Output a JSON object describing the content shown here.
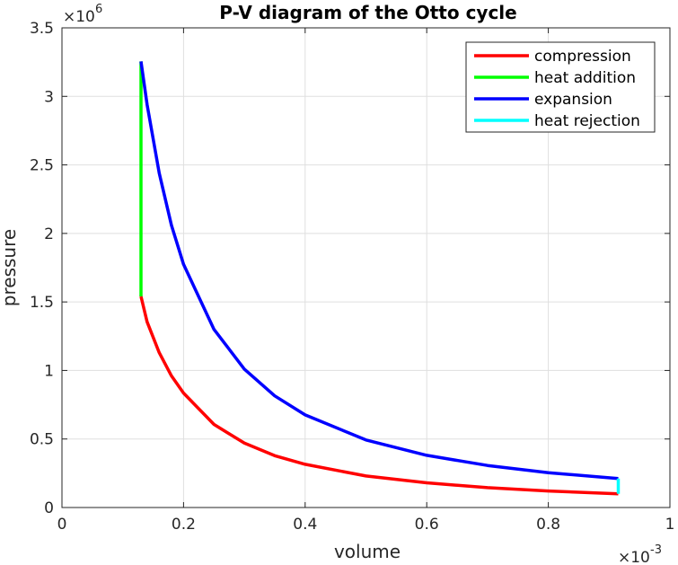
{
  "chart_data": {
    "type": "line",
    "title": "P-V diagram of the Otto cycle",
    "xlabel": "volume",
    "ylabel": "pressure",
    "xlim": [
      0,
      0.001
    ],
    "ylim": [
      0,
      3500000
    ],
    "x_exponent_label": "×10",
    "x_exponent_power": "-3",
    "y_exponent_label": "×10",
    "y_exponent_power": "6",
    "xticks": [
      0,
      0.0002,
      0.0004,
      0.0006,
      0.0008,
      0.001
    ],
    "xtick_labels": [
      "0",
      "0.2",
      "0.4",
      "0.6",
      "0.8",
      "1"
    ],
    "yticks": [
      0,
      500000,
      1000000,
      1500000,
      2000000,
      2500000,
      3000000,
      3500000
    ],
    "ytick_labels": [
      "0",
      "0.5",
      "1",
      "1.5",
      "2",
      "2.5",
      "3",
      "3.5"
    ],
    "grid": true,
    "legend_position": "top-right",
    "series": [
      {
        "name": "compression",
        "color": "#ff0000",
        "x": [
          0.000915,
          0.0008,
          0.0007,
          0.0006,
          0.0005,
          0.0004,
          0.00035,
          0.0003,
          0.00025,
          0.0002,
          0.00018,
          0.00016,
          0.00014,
          0.00013
        ],
        "y": [
          100000,
          120600,
          145100,
          180100,
          230000,
          315000,
          378000,
          470000,
          606000,
          835000,
          961000,
          1130000,
          1355000,
          1540000
        ]
      },
      {
        "name": "heat addition",
        "color": "#00ff00",
        "x": [
          0.00013,
          0.00013
        ],
        "y": [
          1540000,
          3255000
        ]
      },
      {
        "name": "expansion",
        "color": "#0000ff",
        "x": [
          0.00013,
          0.00014,
          0.00016,
          0.00018,
          0.0002,
          0.00025,
          0.0003,
          0.00035,
          0.0004,
          0.0005,
          0.0006,
          0.0007,
          0.0008,
          0.000915
        ],
        "y": [
          3255000,
          2940000,
          2440000,
          2060000,
          1774000,
          1300000,
          1010000,
          815000,
          676000,
          493000,
          381000,
          307000,
          254000,
          211000
        ]
      },
      {
        "name": "heat rejection",
        "color": "#00ffff",
        "x": [
          0.000915,
          0.000915
        ],
        "y": [
          211000,
          100000
        ]
      }
    ]
  }
}
